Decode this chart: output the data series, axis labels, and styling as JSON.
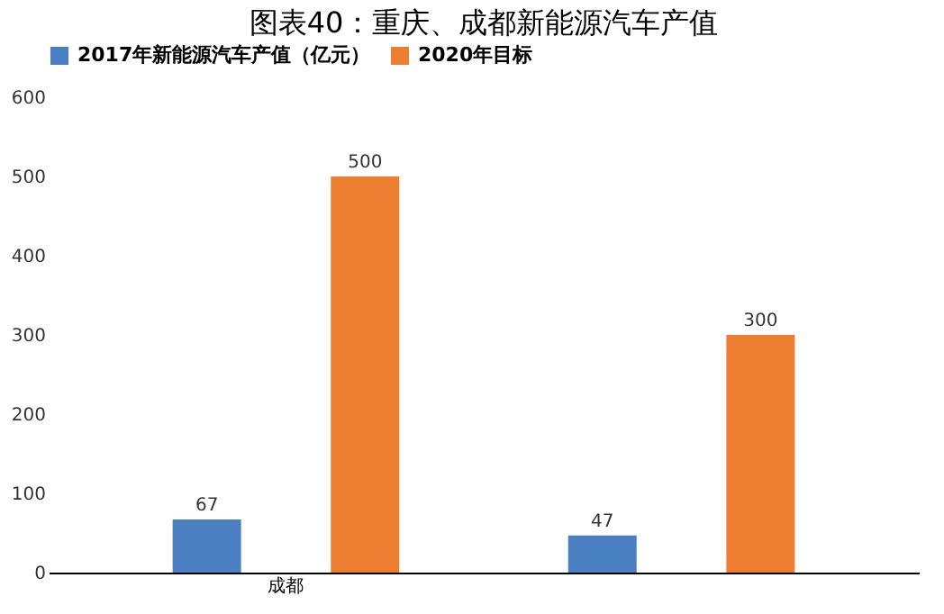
{
  "chart_data": {
    "type": "bar",
    "title": "图表40：重庆、成都新能源汽车产值",
    "categories": [
      "成都",
      null
    ],
    "series": [
      {
        "name": "2017年新能源汽车产值（亿元）",
        "color": "#4a7fc1",
        "values": [
          67,
          47
        ]
      },
      {
        "name": "2020年目标",
        "color": "#ed7d31",
        "values": [
          500,
          300
        ]
      }
    ],
    "ylim": [
      0,
      600
    ],
    "yticks": [
      0,
      100,
      200,
      300,
      400,
      500,
      600
    ],
    "grid": false,
    "legend": "top",
    "data_labels": true
  }
}
